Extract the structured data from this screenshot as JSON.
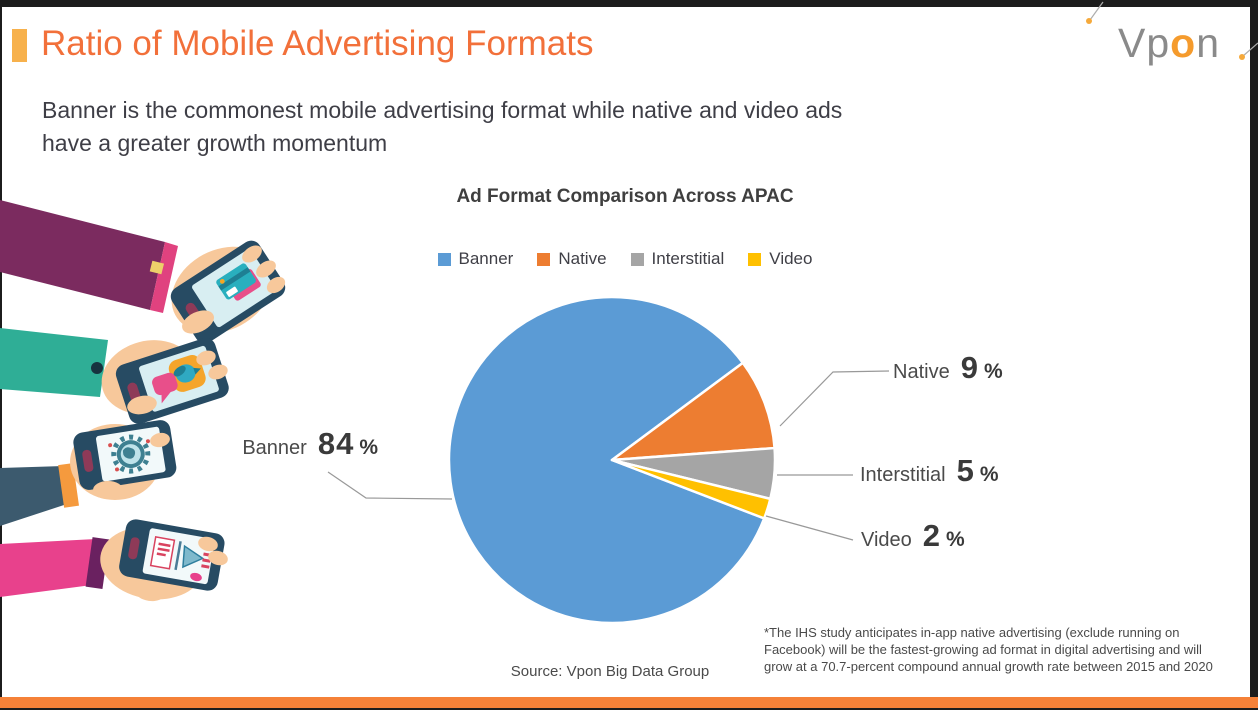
{
  "colors": {
    "accent_bar": "#F58138",
    "title_orange": "#F2703A",
    "bullet_gold": "#F7B14C",
    "frame_dark": "#1C1C1C",
    "text_dark": "#3E3E46",
    "leader_line": "#999999"
  },
  "header": {
    "title": "Ratio of Mobile Advertising Formats",
    "subtitle_line1": "Banner is the commonest mobile advertising format while native and video ads",
    "subtitle_line2": "have a greater growth momentum"
  },
  "logo": {
    "pre": "Vp",
    "accent": "o",
    "post": "n"
  },
  "chart_data": {
    "type": "pie",
    "title": "Ad Format Comparison Across APAC",
    "unit": "%",
    "start_angle_deg": -21,
    "legend_position": "top",
    "series": [
      {
        "name": "Banner",
        "value": 84,
        "color": "#5B9BD5"
      },
      {
        "name": "Native",
        "value": 9,
        "color": "#ED7D31"
      },
      {
        "name": "Interstitial",
        "value": 5,
        "color": "#A5A5A5"
      },
      {
        "name": "Video",
        "value": 2,
        "color": "#FFC000"
      }
    ]
  },
  "source": "Source: Vpon Big Data Group",
  "footnote": {
    "line1": "*The IHS study anticipates in-app native advertising (exclude running on",
    "line2": "Facebook) will be the fastest-growing ad format in digital advertising and will",
    "line3": "grow at a 70.7-percent compound annual growth rate between 2015 and 2020"
  }
}
